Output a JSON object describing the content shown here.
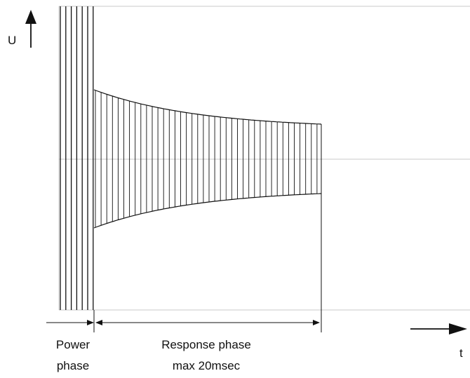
{
  "axes": {
    "y_label": "U",
    "x_label": "t"
  },
  "phases": {
    "power": {
      "line1": "Power",
      "line2": "phase"
    },
    "response": {
      "line1": "Response phase",
      "line2": "max 20msec"
    }
  },
  "colors": {
    "stroke": "#111111",
    "grid": "#c8c8c8",
    "background": "#ffffff"
  }
}
